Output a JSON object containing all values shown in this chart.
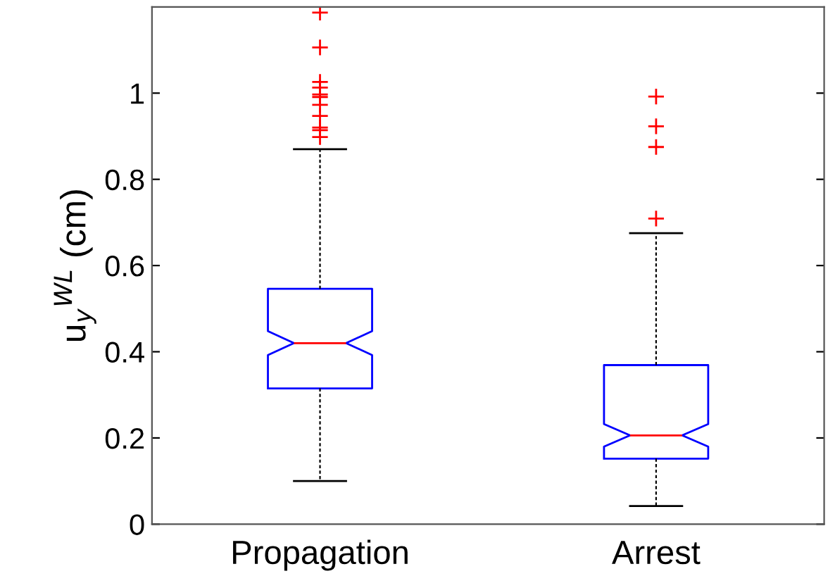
{
  "chart_data": {
    "type": "box",
    "ylabel": "u$_{y}$$^{WL}$ (cm)",
    "categories": [
      "Propagation",
      "Arrest"
    ],
    "series": [
      {
        "color": "#0000ff",
        "boxes": [
          {
            "low": 0.1,
            "q1": 0.315,
            "median": 0.42,
            "q3": 0.546,
            "high": 0.87,
            "outliers": [
              1.187,
              1.106,
              1.026,
              1.013,
              0.997,
              0.991,
              0.973,
              0.947,
              0.92,
              0.914,
              0.898
            ]
          },
          {
            "low": 0.042,
            "q1": 0.152,
            "median": 0.206,
            "q3": 0.369,
            "high": 0.675,
            "outliers": [
              0.992,
              0.923,
              0.875,
              0.709
            ]
          }
        ]
      }
    ],
    "ylim": [
      0,
      1.2
    ],
    "yticks": [
      0,
      0.2,
      0.4,
      0.6,
      0.8,
      1
    ],
    "grid": false,
    "legend": false
  }
}
